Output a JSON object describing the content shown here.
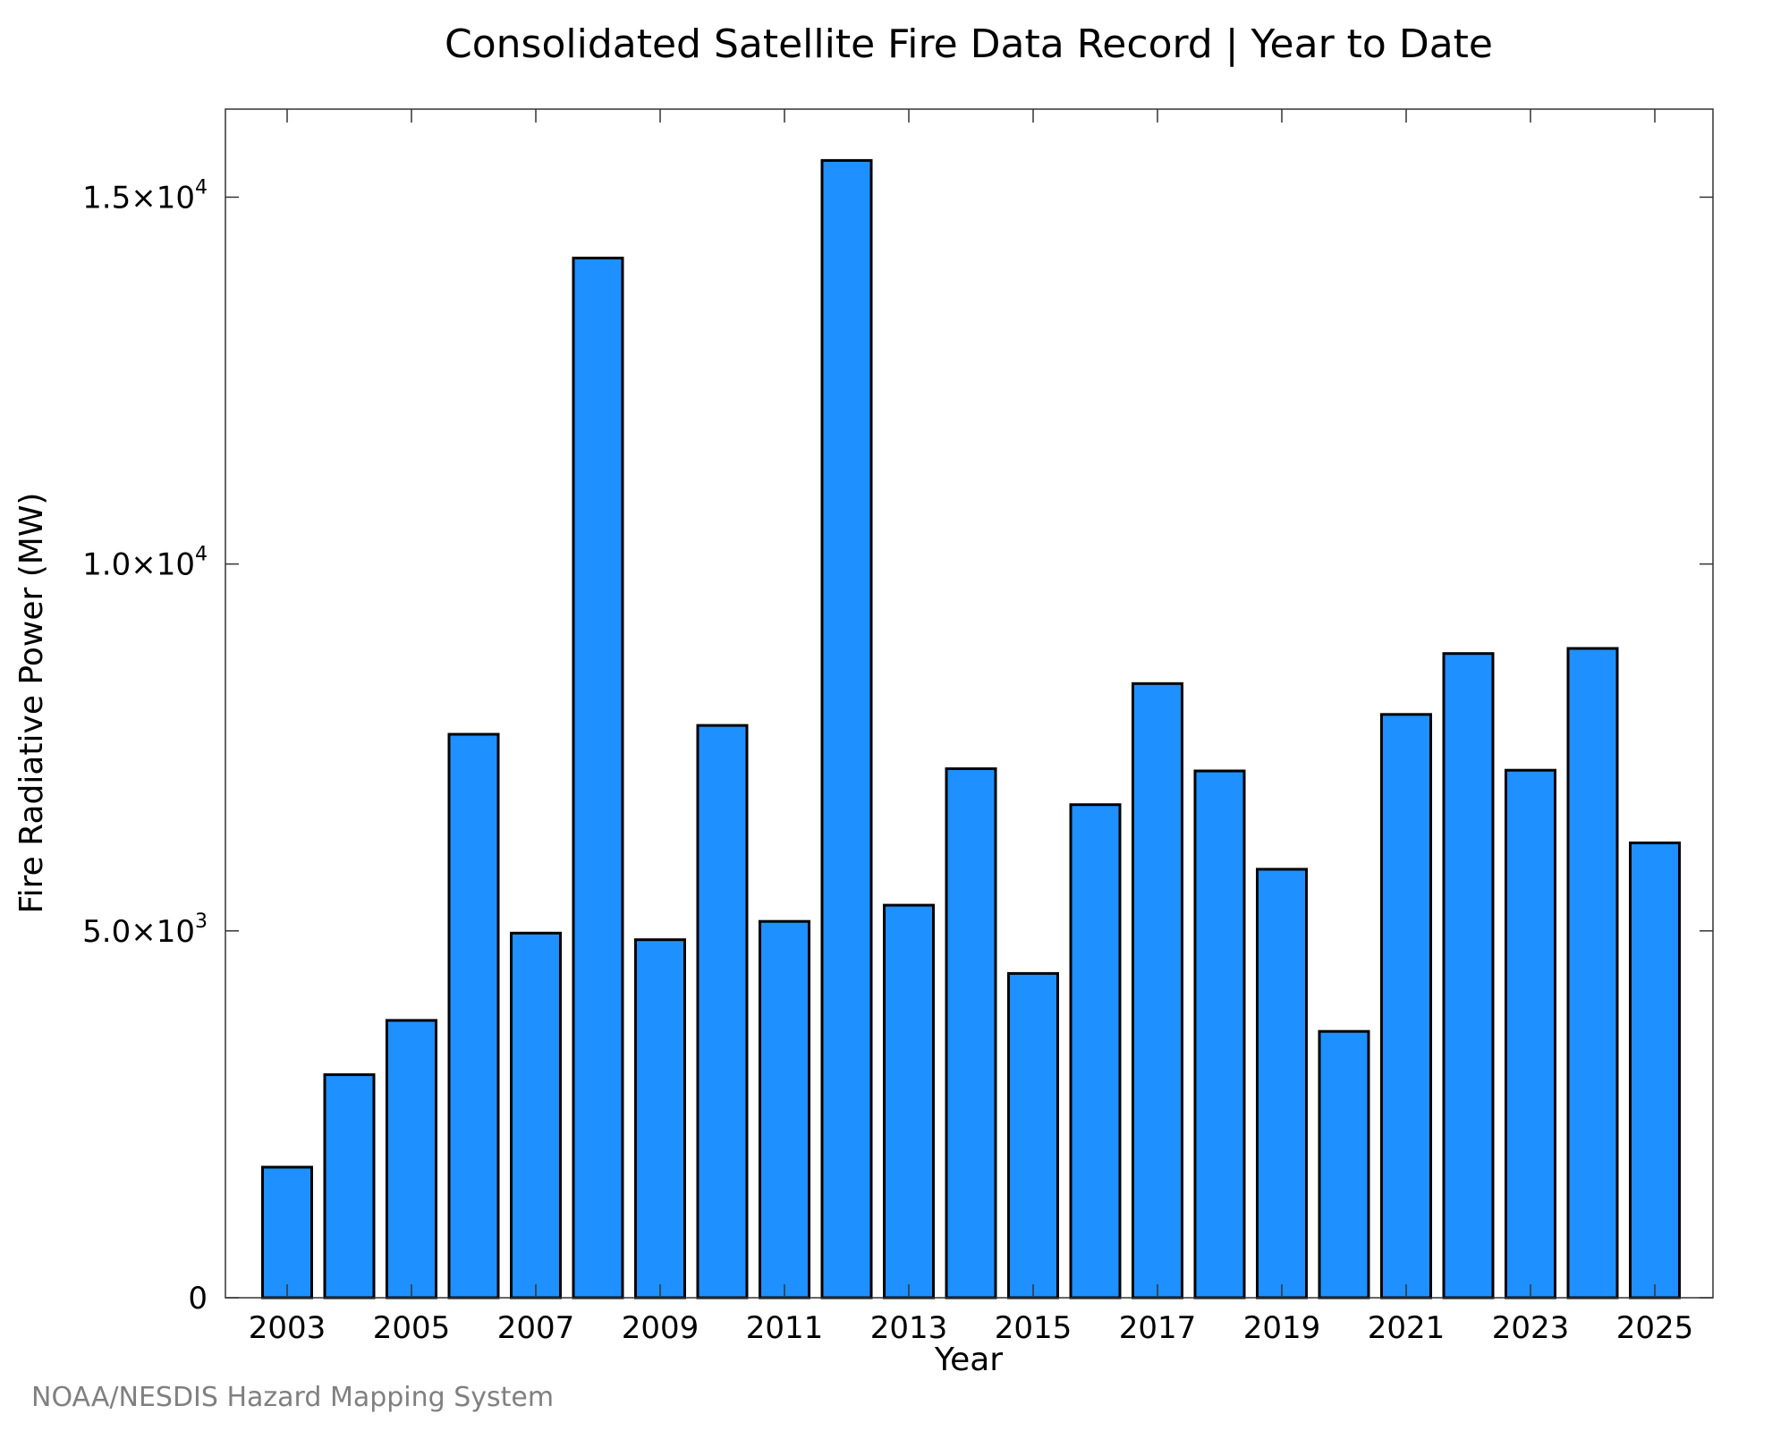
{
  "chart_data": {
    "type": "bar",
    "title": "Consolidated Satellite Fire Data Record | Year to Date",
    "xlabel": "Year",
    "ylabel": "Fire Radiative Power (MW)",
    "categories": [
      "2003",
      "2004",
      "2005",
      "2006",
      "2007",
      "2008",
      "2009",
      "2010",
      "2011",
      "2012",
      "2013",
      "2014",
      "2015",
      "2016",
      "2017",
      "2018",
      "2019",
      "2020",
      "2021",
      "2022",
      "2023",
      "2024",
      "2025"
    ],
    "values": [
      1780,
      3040,
      3780,
      7680,
      4970,
      14170,
      4880,
      7800,
      5130,
      15500,
      5350,
      7210,
      4420,
      6720,
      8370,
      7180,
      5840,
      3630,
      7950,
      8780,
      7190,
      8850,
      6200
    ],
    "x_tick_labels": [
      "2003",
      "2005",
      "2007",
      "2009",
      "2011",
      "2013",
      "2015",
      "2017",
      "2019",
      "2021",
      "2023",
      "2025"
    ],
    "y_ticks": [
      {
        "value": 0,
        "mantissa": "0",
        "exponent": ""
      },
      {
        "value": 5000,
        "mantissa": "5.0×10",
        "exponent": "3"
      },
      {
        "value": 10000,
        "mantissa": "1.0×10",
        "exponent": "4"
      },
      {
        "value": 15000,
        "mantissa": "1.5×10",
        "exponent": "4"
      }
    ],
    "ylim": [
      0,
      16200
    ],
    "grid": false,
    "legend": "none",
    "bar_color": "#1e90ff"
  },
  "credit": "NOAA/NESDIS Hazard Mapping System"
}
